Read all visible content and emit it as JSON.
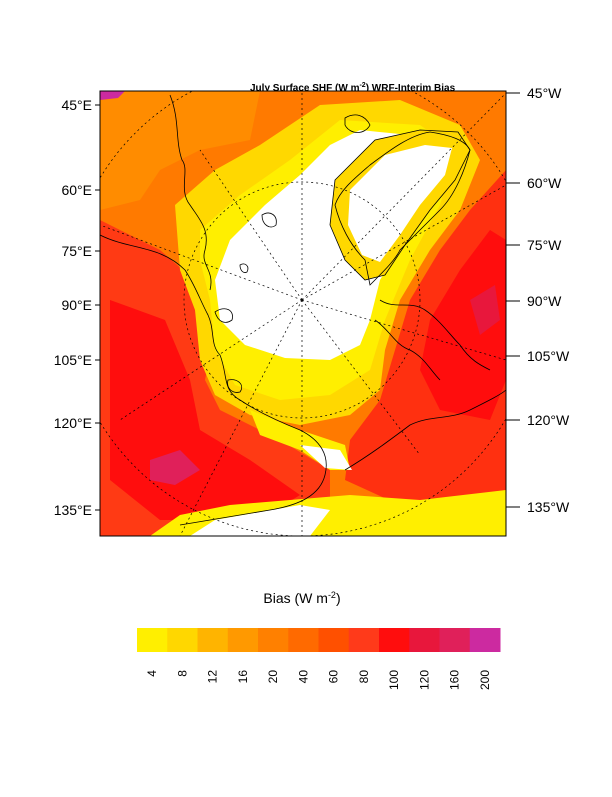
{
  "map": {
    "title_prefix": "July Surface SHF (W m",
    "title_sup": "-2",
    "title_suffix": ") WRF-Interim Bias",
    "left_labels": [
      "45°E",
      "60°E",
      "75°E",
      "90°E",
      "105°E",
      "120°E",
      "135°E"
    ],
    "right_labels": [
      "45°W",
      "60°W",
      "75°W",
      "90°W",
      "105°W",
      "120°W",
      "135°W"
    ]
  },
  "colorbar": {
    "title_prefix": "Bias (W m",
    "title_sup": "-2",
    "title_suffix": ")",
    "ticks": [
      "4",
      "8",
      "12",
      "16",
      "20",
      "40",
      "60",
      "80",
      "100",
      "120",
      "160",
      "200"
    ],
    "colors": [
      "#ffef00",
      "#ffd700",
      "#ffb400",
      "#ff9900",
      "#ff8000",
      "#ff6a00",
      "#ff5000",
      "#ff3a1a",
      "#ff0d0d",
      "#e8173c",
      "#e0205a",
      "#cc2aa0"
    ]
  }
}
